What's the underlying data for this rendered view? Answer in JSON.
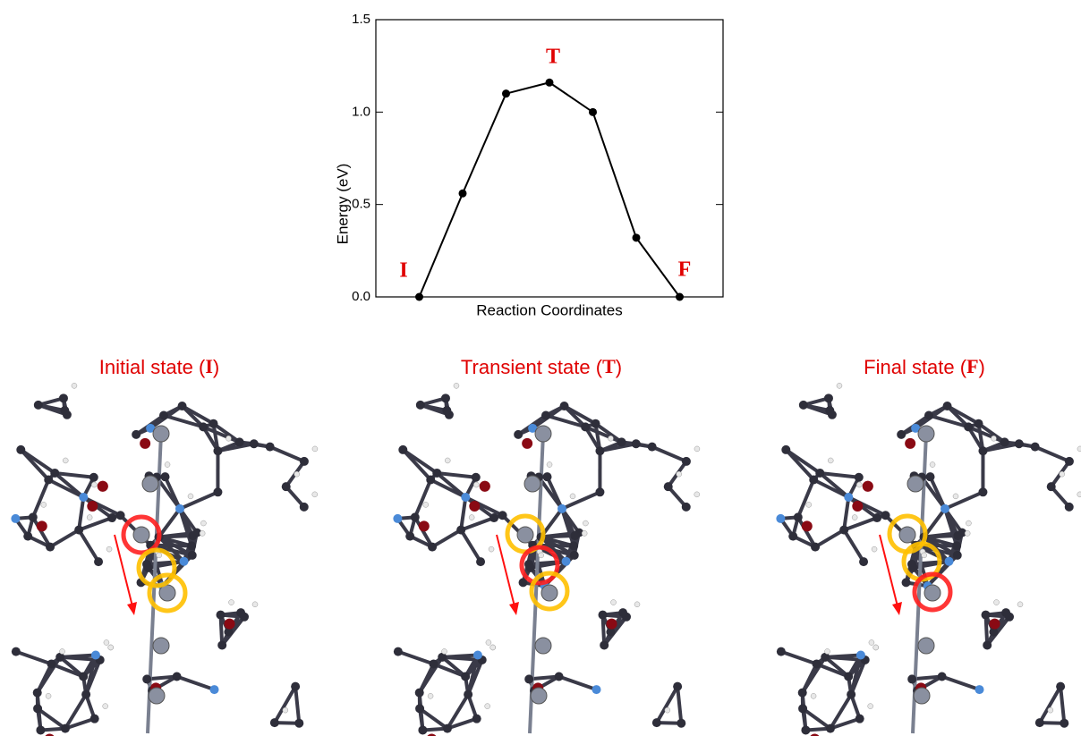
{
  "chart_data": {
    "type": "line",
    "y_label": "Energy (eV)",
    "x_label": "Reaction Coordinates",
    "categories": [
      null,
      null,
      null,
      null,
      null,
      null,
      null
    ],
    "values": [
      0.0,
      0.56,
      1.1,
      1.16,
      1.0,
      0.32,
      0.0
    ],
    "color": "#000000",
    "ylim": [
      0,
      1.5
    ],
    "yticks": [
      {
        "value": 0,
        "label": "0.0"
      },
      {
        "value": 0.5,
        "label": "0.5"
      },
      {
        "value": 1.0,
        "label": "1.0"
      },
      {
        "value": 1.5,
        "label": "1.5"
      }
    ],
    "annotations": [
      "I",
      "T",
      "F"
    ]
  },
  "panels": [
    {
      "prefix": "Initial state (",
      "label": "I",
      "suffix": ")"
    },
    {
      "prefix": "Transient state (",
      "label": "T",
      "suffix": ")"
    },
    {
      "prefix": "Final state (",
      "label": "F",
      "suffix": ")"
    }
  ]
}
